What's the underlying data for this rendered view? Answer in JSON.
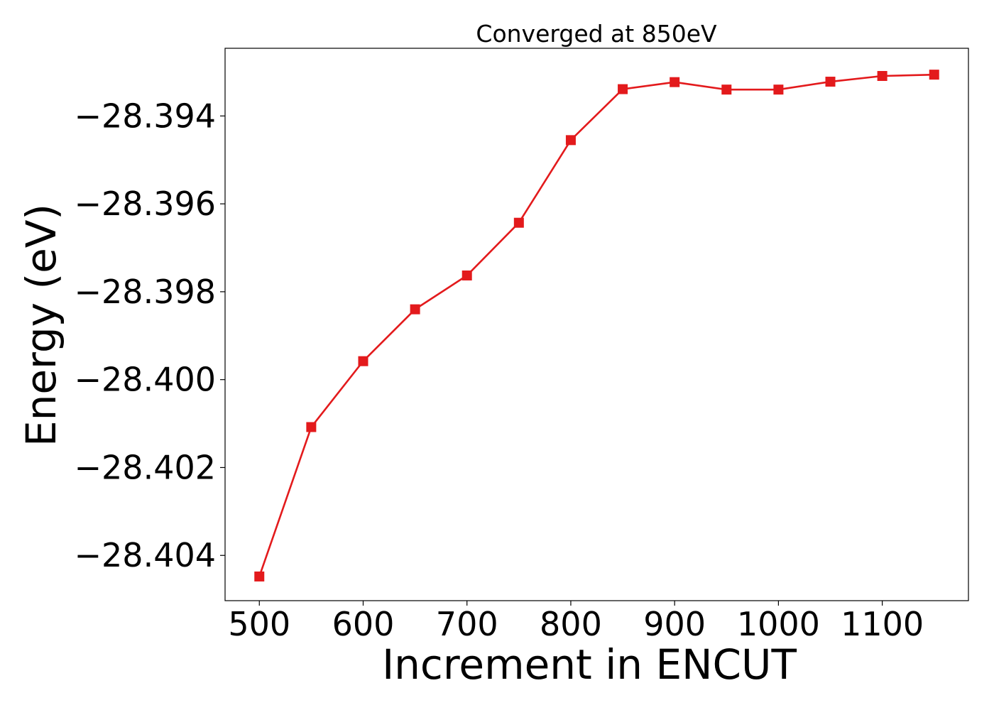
{
  "chart_data": {
    "type": "line",
    "title": "Converged at 850eV",
    "xlabel": "Increment in ENCUT",
    "ylabel": "Energy (eV)",
    "xlim": [
      467,
      1183
    ],
    "ylim": [
      -28.40503,
      -28.39246
    ],
    "x_ticks": [
      500,
      600,
      700,
      800,
      900,
      1000,
      1100
    ],
    "x_tick_labels": [
      "500",
      "600",
      "700",
      "800",
      "900",
      "1000",
      "1100"
    ],
    "y_ticks": [
      -28.394,
      -28.396,
      -28.398,
      -28.4,
      -28.402,
      -28.404
    ],
    "y_tick_labels": [
      "−28.394",
      "−28.396",
      "−28.398",
      "−28.400",
      "−28.402",
      "−28.404"
    ],
    "grid": false,
    "legend": false,
    "series": [
      {
        "color": "#e31a1c",
        "marker": "square",
        "x": [
          500,
          550,
          600,
          650,
          700,
          750,
          800,
          850,
          900,
          950,
          1000,
          1050,
          1100,
          1150
        ],
        "y": [
          -28.40448,
          -28.40108,
          -28.39958,
          -28.3984,
          -28.39763,
          -28.39643,
          -28.39455,
          -28.39339,
          -28.39323,
          -28.3934,
          -28.3934,
          -28.39322,
          -28.39309,
          -28.39306
        ]
      }
    ]
  }
}
